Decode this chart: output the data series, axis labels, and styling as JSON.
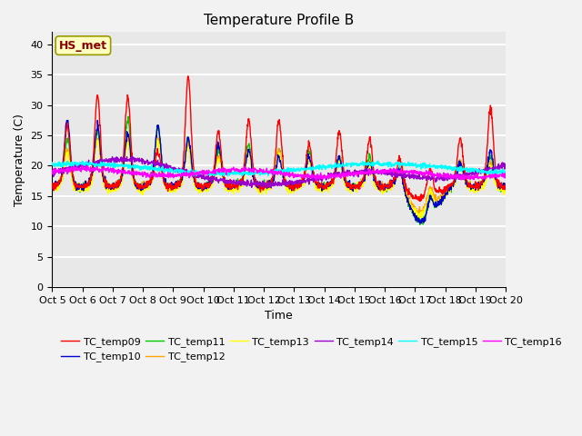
{
  "title": "Temperature Profile B",
  "xlabel": "Time",
  "ylabel": "Temperature (C)",
  "ylim": [
    0,
    42
  ],
  "yticks": [
    0,
    5,
    10,
    15,
    20,
    25,
    30,
    35,
    40
  ],
  "x_tick_labels": [
    "Oct 5",
    "Oct 6",
    "Oct 7",
    "Oct 8",
    "Oct 9",
    "Oct 10",
    "Oct 11",
    "Oct 12",
    "Oct 13",
    "Oct 14",
    "Oct 15",
    "Oct 16",
    "Oct 17",
    "Oct 18",
    "Oct 19",
    "Oct 20"
  ],
  "annotation_text": "HS_met",
  "annotation_color": "#8B0000",
  "annotation_bg": "#FFFFC0",
  "colors": {
    "TC_temp09": "#FF0000",
    "TC_temp10": "#0000CD",
    "TC_temp11": "#00CC00",
    "TC_temp12": "#FFA500",
    "TC_temp13": "#FFFF00",
    "TC_temp14": "#9900CC",
    "TC_temp15": "#00FFFF",
    "TC_temp16": "#FF00FF"
  },
  "axes_bg": "#E8E8E8",
  "fig_bg": "#F2F2F2",
  "grid_color": "#FFFFFF",
  "title_fontsize": 11,
  "label_fontsize": 9,
  "tick_fontsize": 8,
  "legend_fontsize": 8
}
